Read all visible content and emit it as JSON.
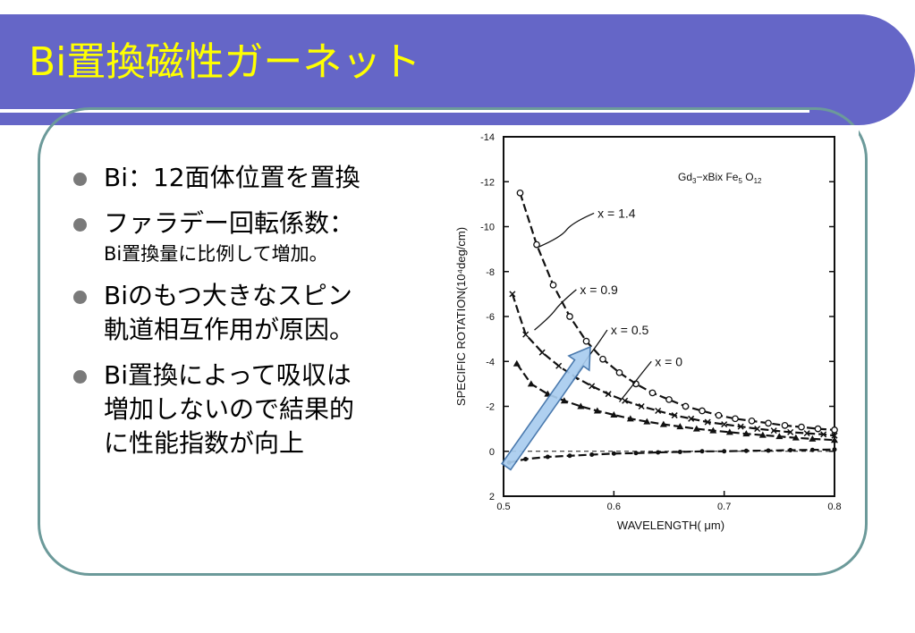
{
  "slide": {
    "title": "Bi置換磁性ガーネット",
    "colors": {
      "title_bar": "#6566c7",
      "title_text": "#ffff00",
      "frame": "#6c9a9a",
      "bullet_dot": "#7a7a7a",
      "arrow_fill": "#a9cdef",
      "arrow_stroke": "#3c6fa8"
    }
  },
  "bullets": [
    {
      "lines": [
        {
          "text": "Bi：12面体位置を置換",
          "size": "big"
        }
      ]
    },
    {
      "lines": [
        {
          "text": "ファラデー回転係数：",
          "size": "big"
        },
        {
          "text": "Bi置換量に比例して増加。",
          "size": "small"
        }
      ]
    },
    {
      "lines": [
        {
          "text": "Biのもつ大きなスピン",
          "size": "big"
        },
        {
          "text": "軌道相互作用が原因。",
          "size": "big"
        }
      ]
    },
    {
      "lines": [
        {
          "text": "Bi置換によって吸収は",
          "size": "big"
        },
        {
          "text": "増加しないので結果的",
          "size": "big"
        },
        {
          "text": "に性能指数が向上",
          "size": "big"
        }
      ]
    }
  ],
  "chart_data": {
    "type": "line",
    "title": "Gd3−xBix Fe5 O12",
    "title_parts": [
      "Gd",
      "3",
      "−xBix Fe",
      "5",
      " O",
      "12"
    ],
    "xlabel": "WAVELENGTH( μm)",
    "ylabel": "SPECIFIC ROTATION(10⁴deg/cm)",
    "xlim": [
      0.5,
      0.8
    ],
    "ylim": [
      2,
      -14
    ],
    "xticks": [
      0.5,
      0.6,
      0.7,
      0.8
    ],
    "xtick_labels": [
      "0.5",
      "0.6",
      "0.7",
      "0.8"
    ],
    "yticks": [
      -14,
      -12,
      -10,
      -8,
      -6,
      -4,
      -2,
      0,
      2
    ],
    "ytick_labels": [
      "-14",
      "-12",
      "-10",
      "-8",
      "-6",
      "-4",
      "-2",
      "0",
      "2"
    ],
    "zero_line": "dashed",
    "series": [
      {
        "name": "x = 1.4",
        "marker": "circle-dot",
        "x": [
          0.515,
          0.53,
          0.545,
          0.56,
          0.575,
          0.59,
          0.605,
          0.62,
          0.635,
          0.65,
          0.665,
          0.68,
          0.695,
          0.71,
          0.725,
          0.74,
          0.755,
          0.77,
          0.785,
          0.8
        ],
        "values": [
          -11.5,
          -9.2,
          -7.4,
          -6.0,
          -4.9,
          -4.1,
          -3.5,
          -3.0,
          -2.6,
          -2.3,
          -2.0,
          -1.8,
          -1.6,
          -1.45,
          -1.35,
          -1.25,
          -1.15,
          -1.08,
          -1.0,
          -0.95
        ]
      },
      {
        "name": "x = 0.9",
        "marker": "x",
        "x": [
          0.508,
          0.52,
          0.535,
          0.55,
          0.565,
          0.58,
          0.595,
          0.61,
          0.625,
          0.64,
          0.655,
          0.67,
          0.685,
          0.7,
          0.715,
          0.73,
          0.745,
          0.76,
          0.775,
          0.79,
          0.8
        ],
        "values": [
          -7.0,
          -5.2,
          -4.4,
          -3.8,
          -3.3,
          -2.9,
          -2.55,
          -2.25,
          -2.0,
          -1.8,
          -1.6,
          -1.45,
          -1.3,
          -1.2,
          -1.1,
          -1.0,
          -0.92,
          -0.85,
          -0.8,
          -0.75,
          -0.7
        ]
      },
      {
        "name": "x = 0.5",
        "marker": "triangle",
        "x": [
          0.512,
          0.525,
          0.54,
          0.555,
          0.57,
          0.585,
          0.6,
          0.615,
          0.63,
          0.645,
          0.66,
          0.675,
          0.69,
          0.705,
          0.72,
          0.735,
          0.75,
          0.765,
          0.78,
          0.8
        ],
        "values": [
          -3.9,
          -3.0,
          -2.55,
          -2.25,
          -2.0,
          -1.8,
          -1.62,
          -1.45,
          -1.32,
          -1.2,
          -1.1,
          -1.0,
          -0.92,
          -0.85,
          -0.78,
          -0.72,
          -0.66,
          -0.6,
          -0.55,
          -0.5
        ]
      },
      {
        "name": "x = 0",
        "marker": "dot",
        "x": [
          0.505,
          0.52,
          0.54,
          0.56,
          0.58,
          0.6,
          0.62,
          0.64,
          0.66,
          0.68,
          0.7,
          0.72,
          0.74,
          0.76,
          0.78,
          0.8
        ],
        "values": [
          0.5,
          0.35,
          0.25,
          0.2,
          0.15,
          0.1,
          0.08,
          0.05,
          0.03,
          0.0,
          0.0,
          -0.02,
          -0.03,
          -0.05,
          -0.06,
          -0.08
        ]
      }
    ],
    "annotations": [
      "x = 1.4",
      "x = 0.9",
      "x = 0.5",
      "x = 0"
    ],
    "overlay": "blue arrow pointing up-right, indicating rotation increases with x"
  }
}
